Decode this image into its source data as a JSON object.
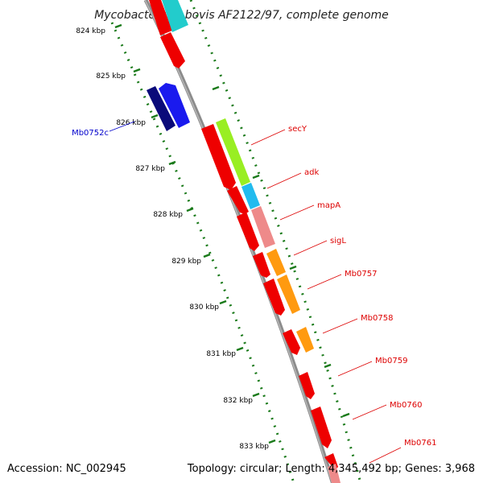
{
  "title": "Mycobacterium bovis AF2122/97, complete genome",
  "footer": {
    "accession": "Accession: NC_002945",
    "topology": "Topology: circular; Length: 4,345,492 bp; Genes: 3,968"
  },
  "scale_labels": [
    "824 kbp",
    "825 kbp",
    "826 kbp",
    "827 kbp",
    "828 kbp",
    "829 kbp",
    "830 kbp",
    "831 kbp",
    "832 kbp",
    "833 kbp"
  ],
  "gene_labels": {
    "mb0752c": "Mb0752c",
    "secy": "secY",
    "adk": "adk",
    "mapa": "mapA",
    "sigl": "sigL",
    "mb0757": "Mb0757",
    "mb0758": "Mb0758",
    "mb0759": "Mb0759",
    "mb0760": "Mb0760",
    "mb0761": "Mb0761"
  },
  "colors": {
    "backbone": "#8c8c8c",
    "scale_tick": "#1a7a1a",
    "gene_red": "#ee0000",
    "gene_blue": "#1a1aee",
    "gene_navy": "#0a0a7a",
    "secy_green": "#99ee22",
    "adk_cyan": "#22bbee",
    "mapa_pink": "#ee8a8a",
    "orange": "#ff9a10",
    "top_cyan": "#22cccc",
    "label_red": "#dd0000",
    "label_blue": "#0000cc"
  }
}
